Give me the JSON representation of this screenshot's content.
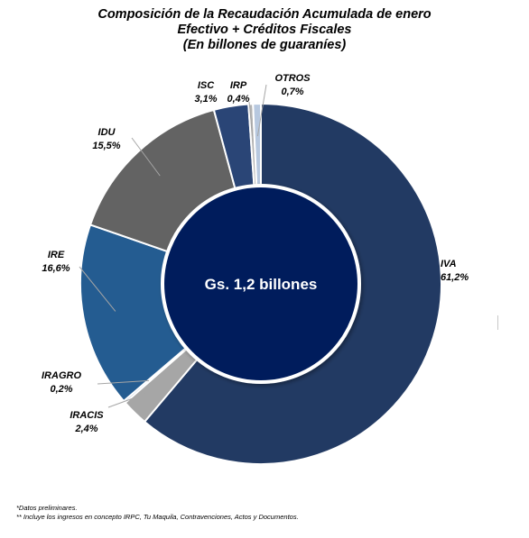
{
  "chart_data": {
    "type": "pie",
    "variant": "donut",
    "title": "Composición de la Recaudación Acumulada de enero",
    "subtitle_lines": [
      "Efectivo + Créditos Fiscales",
      "(En billones de guaraníes)"
    ],
    "center_label": "Gs. 1,2 billones",
    "slices": [
      {
        "name": "IVA",
        "value": 61.2,
        "value_label": "61,2%",
        "color": "#223a63"
      },
      {
        "name": "IRACIS",
        "value": 2.4,
        "value_label": "2,4%",
        "color": "#a6a6a6"
      },
      {
        "name": "IRAGRO",
        "value": 0.2,
        "value_label": "0,2%",
        "color": "#9fb3cc"
      },
      {
        "name": "IRE",
        "value": 16.6,
        "value_label": "16,6%",
        "color": "#245c91"
      },
      {
        "name": "IDU",
        "value": 15.5,
        "value_label": "15,5%",
        "color": "#636363"
      },
      {
        "name": "ISC",
        "value": 3.1,
        "value_label": "3,1%",
        "color": "#2a4576"
      },
      {
        "name": "IRP",
        "value": 0.4,
        "value_label": "0,4%",
        "color": "#b3b3b3"
      },
      {
        "name": "OTROS",
        "value": 0.7,
        "value_label": "0,7%",
        "color": "#b7c8df"
      }
    ],
    "legend": "none"
  },
  "notes": [
    "*Datos preliminares.",
    "** Incluye los ingresos en concepto IRPC, Tu Maquila, Contravenciones, Actos y Documentos."
  ]
}
